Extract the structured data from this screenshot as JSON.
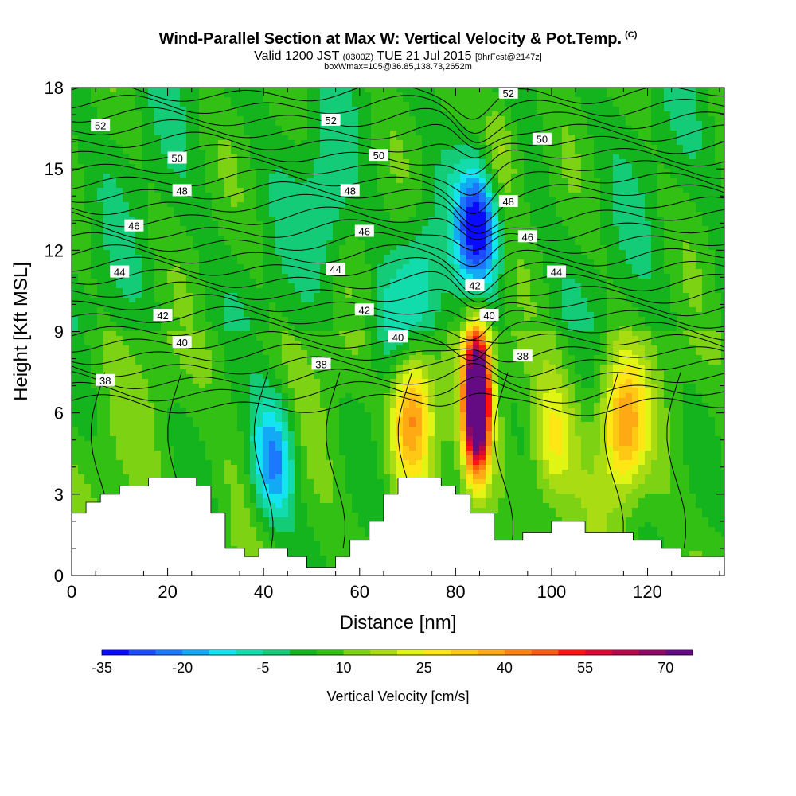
{
  "header": {
    "title": "Wind-Parallel Section at Max W: Vertical Velocity & Pot.Temp.",
    "copyright": "(C)",
    "valid_prefix": "Valid 1200 JST",
    "valid_z": "(0300Z)",
    "valid_date": "TUE 21 Jul 2015",
    "forecast": "[9hrFcst@2147z]",
    "box_info": "boxWmax=105@36.85,138.73,2652m"
  },
  "chart_data": {
    "type": "heatmap",
    "xlabel": "Distance [nm]",
    "ylabel": "Height [Kft MSL]",
    "xlim": [
      0,
      136
    ],
    "ylim": [
      0,
      18
    ],
    "x_ticks": [
      "0",
      "20",
      "40",
      "60",
      "80",
      "100",
      "120"
    ],
    "y_ticks": [
      "0",
      "3",
      "6",
      "9",
      "12",
      "15",
      "18"
    ],
    "colorbar": {
      "title": "Vertical Velocity [cm/s]",
      "labels": [
        "-35",
        "-20",
        "-5",
        "10",
        "25",
        "40",
        "55",
        "70"
      ],
      "colors": [
        "#0a0aff",
        "#1a4bff",
        "#1e78ff",
        "#12aaf5",
        "#14e3f0",
        "#12dcac",
        "#14cc78",
        "#14b41e",
        "#32c014",
        "#7dd214",
        "#aadc14",
        "#e1f514",
        "#ffe614",
        "#ffc814",
        "#ffaa14",
        "#ff8214",
        "#ff5a14",
        "#ff1414",
        "#dc0a32",
        "#b40a4b",
        "#8c0a64",
        "#640a82"
      ]
    },
    "contour_levels": [
      "38",
      "40",
      "42",
      "44",
      "46",
      "48",
      "50",
      "52"
    ],
    "contour_label_positions": [
      {
        "text": "52",
        "x": 6,
        "y": 16.6
      },
      {
        "text": "52",
        "x": 54,
        "y": 16.8
      },
      {
        "text": "52",
        "x": 91,
        "y": 17.8
      },
      {
        "text": "50",
        "x": 22,
        "y": 15.4
      },
      {
        "text": "50",
        "x": 64,
        "y": 15.5
      },
      {
        "text": "50",
        "x": 98,
        "y": 16.1
      },
      {
        "text": "48",
        "x": 23,
        "y": 14.2
      },
      {
        "text": "48",
        "x": 58,
        "y": 14.2
      },
      {
        "text": "48",
        "x": 91,
        "y": 13.8
      },
      {
        "text": "46",
        "x": 13,
        "y": 12.9
      },
      {
        "text": "46",
        "x": 61,
        "y": 12.7
      },
      {
        "text": "46",
        "x": 95,
        "y": 12.5
      },
      {
        "text": "44",
        "x": 10,
        "y": 11.2
      },
      {
        "text": "44",
        "x": 55,
        "y": 11.3
      },
      {
        "text": "44",
        "x": 101,
        "y": 11.2
      },
      {
        "text": "42",
        "x": 19,
        "y": 9.6
      },
      {
        "text": "42",
        "x": 61,
        "y": 9.8
      },
      {
        "text": "42",
        "x": 84,
        "y": 10.7
      },
      {
        "text": "40",
        "x": 23,
        "y": 8.6
      },
      {
        "text": "40",
        "x": 68,
        "y": 8.8
      },
      {
        "text": "40",
        "x": 87,
        "y": 9.6
      },
      {
        "text": "38",
        "x": 7,
        "y": 7.2
      },
      {
        "text": "38",
        "x": 52,
        "y": 7.8
      },
      {
        "text": "38",
        "x": 94,
        "y": 8.1
      }
    ],
    "terrain_heights": [
      {
        "x": 0,
        "h": 2.3
      },
      {
        "x": 3,
        "h": 2.7
      },
      {
        "x": 6,
        "h": 3.0
      },
      {
        "x": 10,
        "h": 3.3
      },
      {
        "x": 16,
        "h": 3.6
      },
      {
        "x": 26,
        "h": 3.3
      },
      {
        "x": 29,
        "h": 2.3
      },
      {
        "x": 32,
        "h": 1.0
      },
      {
        "x": 36,
        "h": 0.7
      },
      {
        "x": 39,
        "h": 1.0
      },
      {
        "x": 45,
        "h": 0.7
      },
      {
        "x": 49,
        "h": 0.3
      },
      {
        "x": 55,
        "h": 0.7
      },
      {
        "x": 58,
        "h": 1.3
      },
      {
        "x": 62,
        "h": 2.0
      },
      {
        "x": 65,
        "h": 3.0
      },
      {
        "x": 68,
        "h": 3.6
      },
      {
        "x": 77,
        "h": 3.3
      },
      {
        "x": 80,
        "h": 3.0
      },
      {
        "x": 83,
        "h": 2.3
      },
      {
        "x": 88,
        "h": 1.3
      },
      {
        "x": 94,
        "h": 1.6
      },
      {
        "x": 100,
        "h": 2.0
      },
      {
        "x": 107,
        "h": 1.6
      },
      {
        "x": 117,
        "h": 1.3
      },
      {
        "x": 123,
        "h": 1.0
      },
      {
        "x": 127,
        "h": 0.7
      },
      {
        "x": 136,
        "h": 0.7
      }
    ],
    "w_features": [
      {
        "x": 84.5,
        "y": 6.5,
        "w": 95
      },
      {
        "x": 85,
        "y": 13.0,
        "w": -40
      },
      {
        "x": 42,
        "y": 4.2,
        "w": -30
      },
      {
        "x": 71,
        "y": 6.0,
        "w": 35
      },
      {
        "x": 115,
        "y": 5.5,
        "w": 30
      },
      {
        "x": 100,
        "y": 5.0,
        "w": 20
      },
      {
        "x": 89,
        "y": 15.5,
        "w": 18
      },
      {
        "x": 73,
        "y": 11.0,
        "w": -12
      },
      {
        "x": 66,
        "y": 8.5,
        "w": -12
      },
      {
        "x": 53,
        "y": 13.5,
        "w": -10
      }
    ]
  }
}
